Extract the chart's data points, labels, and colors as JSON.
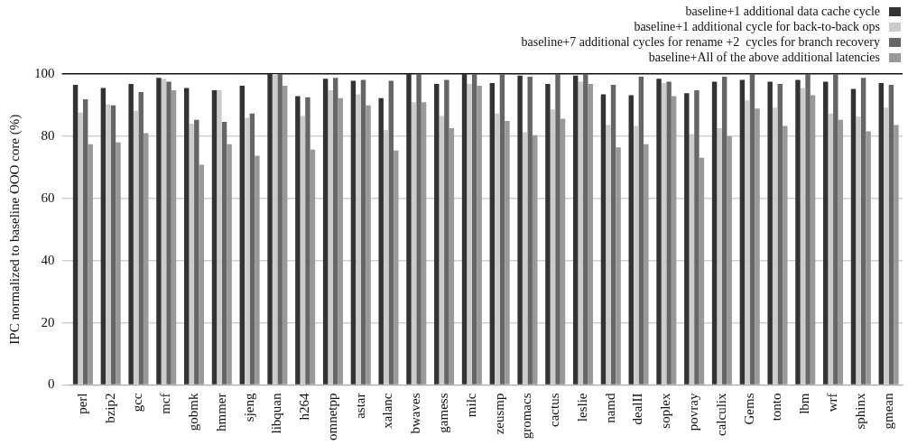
{
  "chart_data": {
    "type": "bar",
    "ylabel": "IPC normalized to baseline OOO core (%)",
    "categories": [
      "perl",
      "bzip2",
      "gcc",
      "mcf",
      "gobmk",
      "hmmer",
      "sjeng",
      "libquan",
      "h264",
      "omnetpp",
      "astar",
      "xalanc",
      "bwaves",
      "gamess",
      "milc",
      "zeusmp",
      "gromacs",
      "cactus",
      "leslie",
      "namd",
      "dealII",
      "soplex",
      "povray",
      "calculix",
      "Gems",
      "tonto",
      "lbm",
      "wrf",
      "sphinx",
      "gmean"
    ],
    "series": [
      {
        "name": "baseline+1 additional data cache cycle",
        "color": "#333333",
        "values": [
          96.5,
          95.5,
          96.8,
          98.8,
          95.5,
          94.8,
          96.2,
          100,
          92.9,
          98.5,
          97.8,
          92.2,
          100,
          96.8,
          100,
          97.1,
          99.5,
          96.8,
          99.5,
          93.5,
          93.2,
          98.5,
          93.8,
          97.5,
          98.1,
          97.5,
          98.1,
          97.5,
          95.2,
          97.1
        ]
      },
      {
        "name": "baseline+1 additional cycle for back-to-back ops",
        "color": "#cccccc",
        "values": [
          87.6,
          90.2,
          88.2,
          98.5,
          84.0,
          94.8,
          85.9,
          100,
          86.6,
          94.8,
          93.5,
          82.0,
          90.9,
          86.6,
          96.8,
          87.3,
          81.3,
          88.6,
          97.5,
          83.6,
          83.3,
          97.1,
          80.7,
          82.6,
          91.5,
          89.2,
          95.5,
          87.3,
          86.3,
          89.2
        ]
      },
      {
        "name": "baseline+7 additional cycles for rename +2  cycles for branch recovery",
        "color": "#666666",
        "values": [
          91.9,
          89.9,
          94.2,
          97.5,
          85.3,
          84.6,
          87.3,
          100,
          92.5,
          98.8,
          98.1,
          97.8,
          100,
          98.1,
          100,
          100,
          99.1,
          100,
          100,
          96.5,
          99.1,
          97.5,
          94.8,
          99.1,
          100,
          96.8,
          100,
          100,
          98.8,
          96.5
        ]
      },
      {
        "name": "baseline+All of the above additional latencies",
        "color": "#999999",
        "values": [
          77.4,
          78.0,
          81.0,
          94.8,
          70.8,
          77.4,
          73.7,
          96.2,
          75.7,
          92.2,
          89.9,
          75.4,
          90.9,
          82.6,
          96.2,
          84.9,
          80.3,
          85.6,
          96.8,
          76.4,
          77.4,
          92.9,
          73.1,
          80.0,
          88.9,
          83.3,
          93.2,
          85.3,
          81.6,
          83.6
        ]
      }
    ],
    "ylim": [
      0,
      100
    ],
    "yticks": [
      0,
      20,
      40,
      60,
      80,
      100
    ],
    "grid": "y",
    "legend": "top right"
  }
}
